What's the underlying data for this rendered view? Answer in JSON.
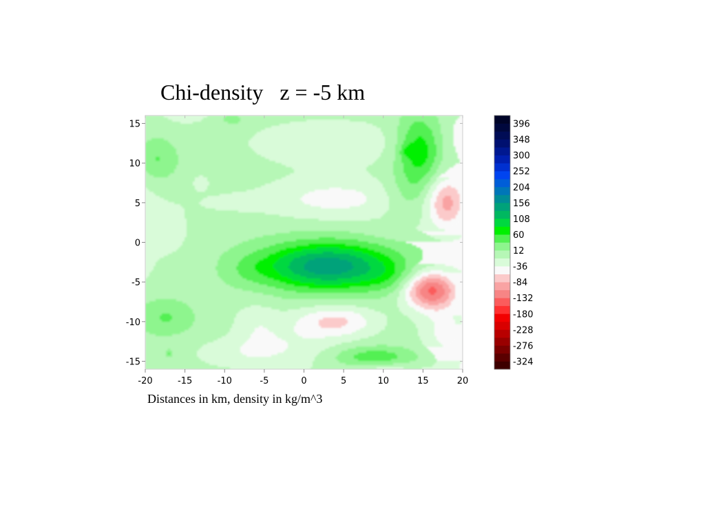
{
  "chart_data": {
    "type": "heatmap",
    "title": "Chi-density   z = -5 km",
    "note": "Distances in km, density in kg/m^3",
    "xlim": [
      -20,
      20
    ],
    "ylim": [
      -16,
      16
    ],
    "x_ticks": [
      -20,
      -15,
      -10,
      -5,
      0,
      5,
      10,
      15,
      20
    ],
    "y_ticks": [
      15,
      10,
      5,
      0,
      -5,
      -10,
      -15
    ],
    "colorbar": {
      "min": -348,
      "max": 420,
      "step": 24,
      "tick_labels": [
        396,
        348,
        300,
        252,
        204,
        156,
        108,
        60,
        12,
        -36,
        -84,
        -132,
        -180,
        -228,
        -276,
        -324
      ],
      "colors_low_to_high": [
        "#3d0000",
        "#5a0000",
        "#7a0000",
        "#990000",
        "#b80000",
        "#d90000",
        "#f20000",
        "#ff3030",
        "#fb5c5c",
        "#f78585",
        "#f9a3a3",
        "#fbcaca",
        "#f9f9f9",
        "#d9fbd9",
        "#b6f7b6",
        "#8ef58e",
        "#52f052",
        "#00f000",
        "#00d840",
        "#00b860",
        "#00a27a",
        "#008c96",
        "#0076b8",
        "#005ed8",
        "#0044f0",
        "#0030d0",
        "#0020b0",
        "#001890",
        "#001070",
        "#000c55",
        "#00083d",
        "#000428"
      ]
    },
    "features": [
      {
        "x": 3,
        "y": -3,
        "sx": 8.5,
        "sy": 3.0,
        "amp": 150
      },
      {
        "x": 11,
        "y": -4.5,
        "sx": 3.5,
        "sy": 2.0,
        "amp": 20
      },
      {
        "x": -7,
        "y": -3.5,
        "sx": 3.0,
        "sy": 2.0,
        "amp": 15
      },
      {
        "x": 4,
        "y": 5.5,
        "sx": 9.0,
        "sy": 2.6,
        "amp": -45
      },
      {
        "x": -10,
        "y": 5.0,
        "sx": 5.0,
        "sy": 1.5,
        "amp": -14
      },
      {
        "x": 12,
        "y": 1.5,
        "sx": 4.5,
        "sy": 1.2,
        "amp": -14
      },
      {
        "x": 3,
        "y": 12.5,
        "sx": 10.0,
        "sy": 3.0,
        "amp": -32
      },
      {
        "x": 14.5,
        "y": 11.5,
        "sx": 2.8,
        "sy": 4.5,
        "amp": 80
      },
      {
        "x": 13,
        "y": 11.5,
        "sx": 0.8,
        "sy": 0.8,
        "amp": 30
      },
      {
        "x": 13,
        "y": 6.0,
        "sx": 3.0,
        "sy": 2.5,
        "amp": 22
      },
      {
        "x": 18,
        "y": 5.0,
        "sx": 2.5,
        "sy": 3.5,
        "amp": -90
      },
      {
        "x": 21,
        "y": 13.5,
        "sx": 3.0,
        "sy": 3.0,
        "amp": -30
      },
      {
        "x": 16,
        "y": -6.0,
        "sx": 3.3,
        "sy": 2.4,
        "amp": -140
      },
      {
        "x": 18,
        "y": -11.5,
        "sx": 3.0,
        "sy": 3.5,
        "amp": -45
      },
      {
        "x": 21,
        "y": -10.0,
        "sx": 1.2,
        "sy": 1.5,
        "amp": 35
      },
      {
        "x": 4,
        "y": -10.0,
        "sx": 5.0,
        "sy": 2.0,
        "amp": -65
      },
      {
        "x": -6,
        "y": -10.5,
        "sx": 3.0,
        "sy": 3.0,
        "amp": -28
      },
      {
        "x": -1,
        "y": -13.0,
        "sx": 5.0,
        "sy": 3.0,
        "amp": -25
      },
      {
        "x": -8,
        "y": -14.0,
        "sx": 6.0,
        "sy": 2.0,
        "amp": -28
      },
      {
        "x": 9,
        "y": -14.5,
        "sx": 5.0,
        "sy": 1.3,
        "amp": 55
      },
      {
        "x": 10,
        "y": -16.5,
        "sx": 3.0,
        "sy": 1.5,
        "amp": -20
      },
      {
        "x": -17.5,
        "y": -9.5,
        "sx": 3.5,
        "sy": 2.2,
        "amp": 38
      },
      {
        "x": -17,
        "y": -14.0,
        "sx": 0.5,
        "sy": 0.5,
        "amp": 40
      },
      {
        "x": -18.5,
        "y": 10.5,
        "sx": 2.5,
        "sy": 2.5,
        "amp": 38
      },
      {
        "x": -15,
        "y": 16.5,
        "sx": 3.0,
        "sy": 1.5,
        "amp": -30
      },
      {
        "x": -9,
        "y": 15.5,
        "sx": 1.5,
        "sy": 0.8,
        "amp": 25
      },
      {
        "x": -18,
        "y": 1.5,
        "sx": 3.5,
        "sy": 3.5,
        "amp": -28
      },
      {
        "x": -21,
        "y": 5.0,
        "sx": 2.5,
        "sy": 4.0,
        "amp": -20
      },
      {
        "x": -13,
        "y": 7.5,
        "sx": 1.0,
        "sy": 1.0,
        "amp": -25
      },
      {
        "x": -21,
        "y": -3.0,
        "sx": 2.0,
        "sy": 2.5,
        "amp": -22
      },
      {
        "x": 11,
        "y": -16.5,
        "sx": 8.0,
        "sy": 1.2,
        "amp": -20
      }
    ]
  }
}
